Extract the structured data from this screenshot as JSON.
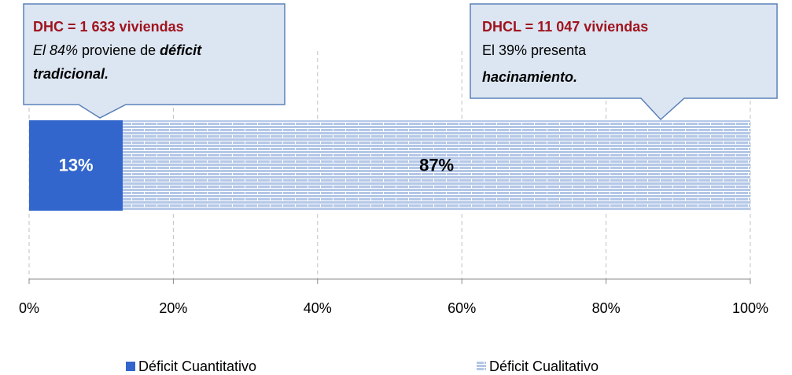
{
  "chart_data": {
    "type": "bar",
    "orientation": "horizontal",
    "stacked": true,
    "categories": [
      null
    ],
    "series": [
      {
        "name": "Déficit Cuantitativo",
        "color": "#3366cc",
        "values": [
          13
        ],
        "value_labels": [
          "13%"
        ]
      },
      {
        "name": "Déficit Cualitativo",
        "color": "#b4c7e7",
        "pattern": "brick",
        "values": [
          87
        ],
        "value_labels": [
          "87%"
        ]
      }
    ],
    "xlim": [
      0,
      100
    ],
    "xticks": [
      {
        "value": 0,
        "label": "0%"
      },
      {
        "value": 20,
        "label": "20%"
      },
      {
        "value": 40,
        "label": "40%"
      },
      {
        "value": 60,
        "label": "60%"
      },
      {
        "value": 80,
        "label": "80%"
      },
      {
        "value": 100,
        "label": "100%"
      }
    ],
    "grid": true,
    "legend": "bottom",
    "annotations": [
      {
        "title": "DHC = 1 633 viviendas",
        "parts": [
          "El 84%",
          " proviene de ",
          "déficit",
          "tradicional."
        ]
      },
      {
        "title": "DHCL = 11 047 viviendas",
        "parts": [
          "El 39% presenta",
          "hacinamiento."
        ]
      }
    ]
  }
}
